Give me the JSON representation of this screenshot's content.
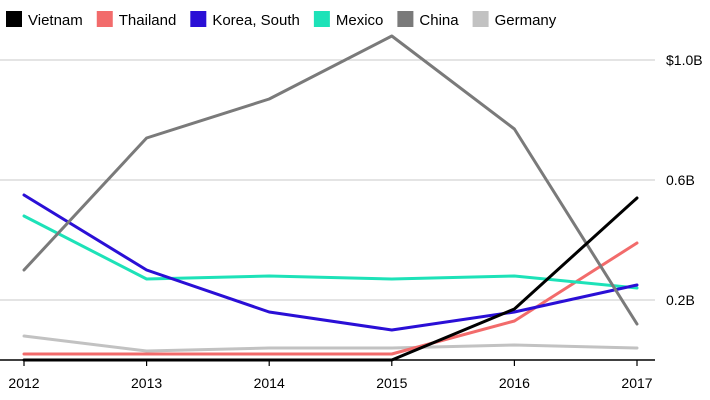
{
  "chart_data": {
    "type": "line",
    "x": [
      "2012",
      "2013",
      "2014",
      "2015",
      "2016",
      "2017"
    ],
    "ylim": [
      0,
      1.1
    ],
    "yticks": [
      {
        "value": 0.2,
        "label": "0.2B"
      },
      {
        "value": 0.6,
        "label": "0.6B"
      },
      {
        "value": 1.0,
        "label": "$1.0B"
      }
    ],
    "grid": true,
    "legend_position": "top",
    "series": [
      {
        "name": "Vietnam",
        "color": "#000000",
        "values": [
          0.0,
          0.0,
          0.0,
          0.0,
          0.17,
          0.54
        ]
      },
      {
        "name": "Thailand",
        "color": "#f26b6b",
        "values": [
          0.02,
          0.02,
          0.02,
          0.02,
          0.13,
          0.39
        ]
      },
      {
        "name": "Korea, South",
        "color": "#2a0fd6",
        "values": [
          0.55,
          0.3,
          0.16,
          0.1,
          0.16,
          0.25
        ]
      },
      {
        "name": "Mexico",
        "color": "#1de2b8",
        "values": [
          0.48,
          0.27,
          0.28,
          0.27,
          0.28,
          0.24
        ]
      },
      {
        "name": "China",
        "color": "#7a7a7a",
        "values": [
          0.3,
          0.74,
          0.87,
          1.08,
          0.77,
          0.12
        ]
      },
      {
        "name": "Germany",
        "color": "#c2c2c2",
        "values": [
          0.08,
          0.03,
          0.04,
          0.04,
          0.05,
          0.04
        ]
      }
    ]
  }
}
